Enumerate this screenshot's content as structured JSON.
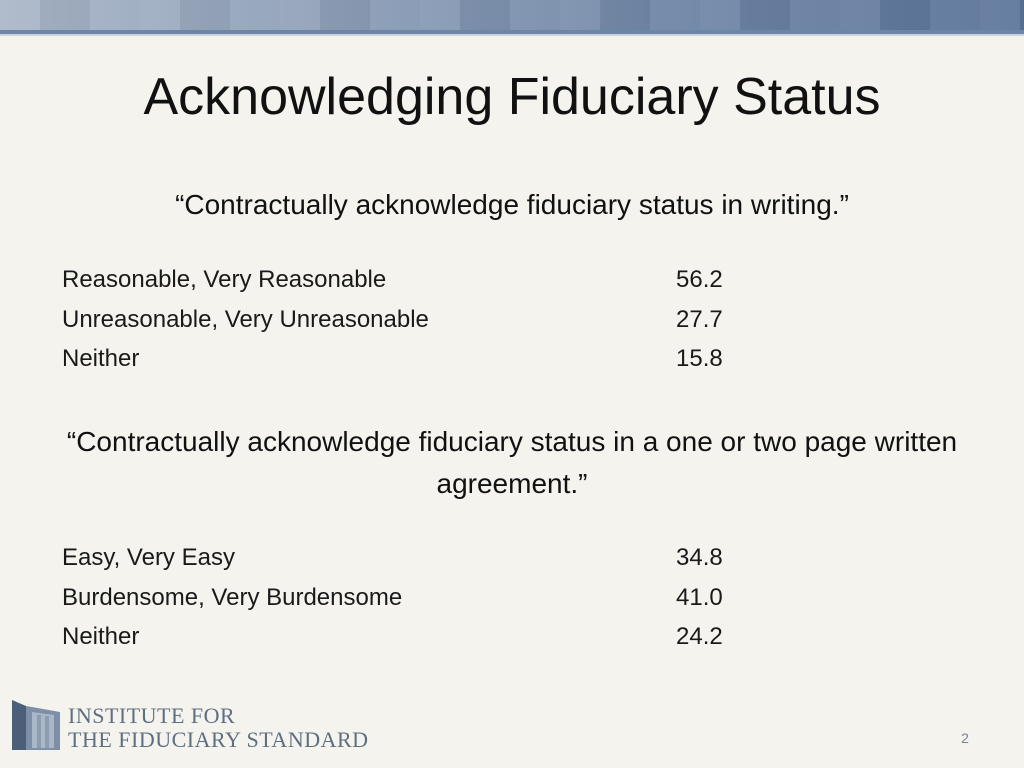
{
  "slide": {
    "title": "Acknowledging Fiduciary Status",
    "page_number": "2"
  },
  "section1": {
    "quote": "“Contractually acknowledge fiduciary status in writing.”",
    "rows": [
      {
        "label": "Reasonable, Very Reasonable",
        "value": "56.2"
      },
      {
        "label": "Unreasonable, Very Unreasonable",
        "value": "27.7"
      },
      {
        "label": "Neither",
        "value": "15.8"
      }
    ]
  },
  "section2": {
    "quote": "“Contractually acknowledge fiduciary status in a one or two page written agreement.”",
    "rows": [
      {
        "label": "Easy, Very Easy",
        "value": "34.8"
      },
      {
        "label": "Burdensome, Very Burdensome",
        "value": "41.0"
      },
      {
        "label": "Neither",
        "value": "24.2"
      }
    ]
  },
  "logo": {
    "line1": "Institute for",
    "line2": "the Fiduciary Standard",
    "icon": "columns-logo-icon"
  },
  "colors": {
    "header_band": "#6f86a6",
    "background": "#f4f3ee",
    "logo_text": "#5e6f82"
  }
}
